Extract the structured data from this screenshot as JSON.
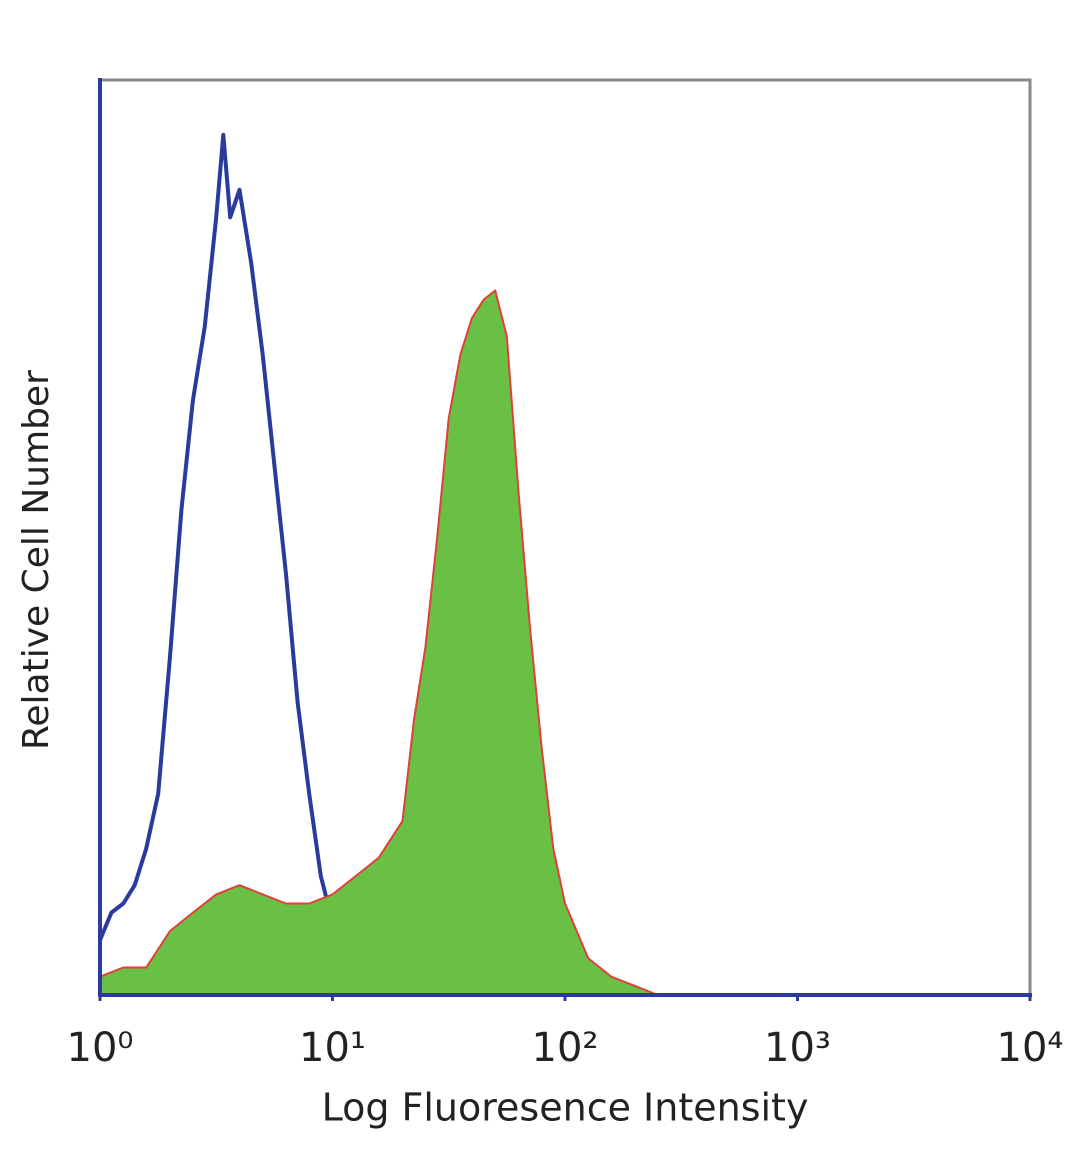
{
  "chart_data": {
    "type": "histogram-overlay",
    "x_label": "Log Fluoresence Intensity",
    "y_label": "Relative Cell Number",
    "xscale": "log",
    "xlim": [
      1,
      10000
    ],
    "ylim": [
      0,
      100
    ],
    "xticks": [
      {
        "value": 1,
        "label": "10⁰"
      },
      {
        "value": 10,
        "label": "10¹"
      },
      {
        "value": 100,
        "label": "10²"
      },
      {
        "value": 1000,
        "label": "10³"
      },
      {
        "value": 10000,
        "label": "10⁴"
      }
    ],
    "series": [
      {
        "color": "#2b3a9e",
        "fill": false,
        "x": [
          1,
          1.12,
          1.26,
          1.41,
          1.58,
          1.78,
          2.0,
          2.24,
          2.51,
          2.82,
          3.16,
          3.39,
          3.63,
          3.98,
          4.47,
          5.01,
          5.62,
          6.31,
          7.08,
          7.94,
          8.91,
          10,
          11.2,
          12.6,
          15.8,
          20,
          31.6
        ],
        "values": [
          6,
          9,
          10,
          12,
          16,
          22,
          37,
          53,
          65,
          73,
          85,
          94,
          85,
          88,
          80,
          70,
          58,
          46,
          32,
          22,
          13,
          8,
          5,
          3,
          2,
          1,
          0
        ]
      },
      {
        "color": "#6abf45",
        "fill": true,
        "edge_color": "#e0403a",
        "x": [
          1,
          1.26,
          1.58,
          2.0,
          2.51,
          3.16,
          3.98,
          5.01,
          6.31,
          7.94,
          10,
          12.6,
          15.8,
          20,
          22.4,
          25.1,
          28.2,
          31.6,
          35.5,
          39.8,
          44.7,
          50.1,
          56.2,
          63.1,
          70.8,
          79.4,
          89.1,
          100,
          126,
          158,
          200,
          251
        ],
        "values": [
          2,
          3,
          3,
          7,
          9,
          11,
          12,
          11,
          10,
          10,
          11,
          13,
          15,
          19,
          30,
          38,
          50,
          63,
          70,
          74,
          76,
          77,
          72,
          55,
          40,
          27,
          16,
          10,
          4,
          2,
          1,
          0
        ]
      }
    ]
  }
}
